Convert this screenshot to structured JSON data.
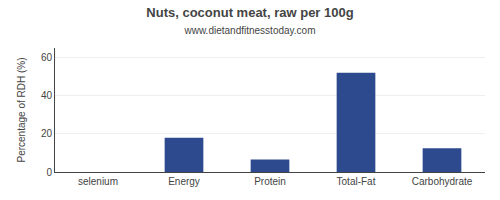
{
  "chart_data": {
    "type": "bar",
    "title": "Nuts, coconut meat, raw per 100g",
    "subtitle": "www.dietandfitnesstoday.com",
    "categories": [
      "selenium",
      "Energy",
      "Protein",
      "Total-Fat",
      "Carbohydrate"
    ],
    "values": [
      0.0,
      18.0,
      6.5,
      52.0,
      12.5
    ],
    "color": "#2e4a8e",
    "ylabel": "Percentage of RDH (%)",
    "ylim": [
      0,
      65
    ],
    "yticks": [
      0,
      20,
      40,
      60
    ],
    "grid": true
  }
}
